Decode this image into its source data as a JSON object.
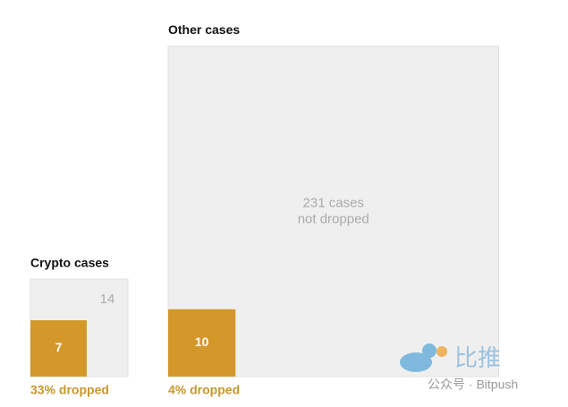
{
  "chart_data": {
    "type": "square",
    "series": [
      {
        "name": "dropped",
        "color": "#d4972a"
      },
      {
        "name": "not dropped",
        "color": "#efefef"
      }
    ],
    "panels": [
      {
        "title": "Crypto cases",
        "values": [
          7,
          14
        ],
        "note": "33% dropped"
      },
      {
        "title": "Other cases",
        "values": [
          10,
          231
        ],
        "value_labels": [
          "10",
          "231 cases not dropped"
        ],
        "note": "4% dropped"
      }
    ],
    "watermark": {
      "title": "比推",
      "subtitle": "公众号 · Bitpush"
    }
  }
}
